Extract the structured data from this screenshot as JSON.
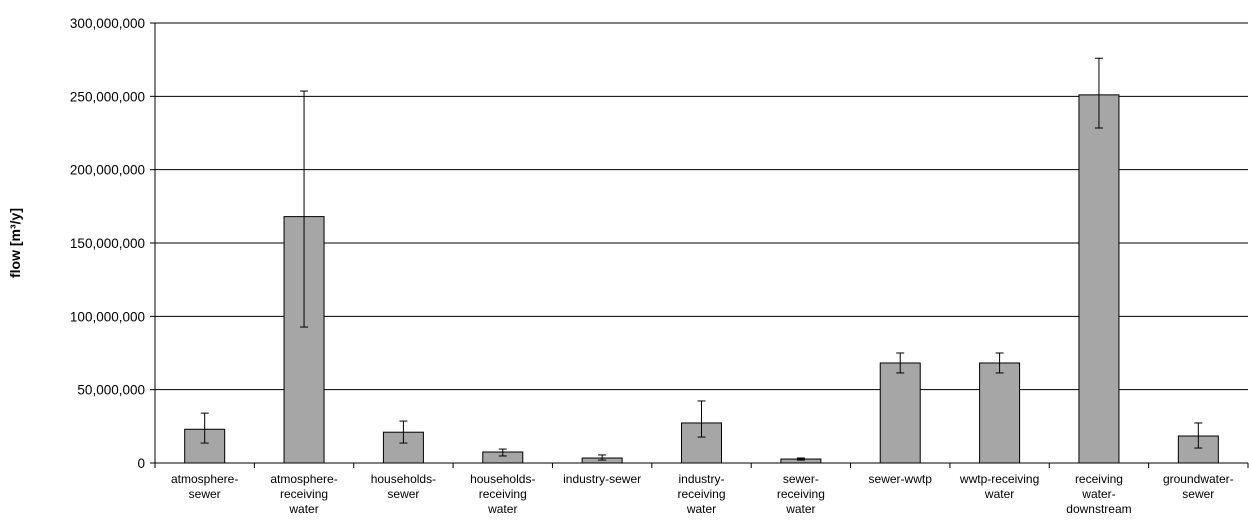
{
  "chart_data": {
    "type": "bar",
    "y_label": "flow [m³/y]",
    "categories": [
      [
        "atmosphere-",
        "sewer"
      ],
      [
        "atmosphere-",
        "receiving",
        "water"
      ],
      [
        "households-",
        "sewer"
      ],
      [
        "households-",
        "receiving",
        "water"
      ],
      [
        "industry-sewer"
      ],
      [
        "industry-",
        "receiving",
        "water"
      ],
      [
        "sewer-",
        "receiving",
        "water"
      ],
      [
        "sewer-wwtp"
      ],
      [
        "wwtp-receiving",
        "water"
      ],
      [
        "receiving",
        "water-",
        "downstream"
      ],
      [
        "groundwater-",
        "sewer"
      ]
    ],
    "values": [
      23000000,
      168000000,
      21000000,
      7500000,
      3400000,
      27300000,
      2700000,
      68200000,
      68200000,
      251000000,
      18400000
    ],
    "errors_high": [
      11000000,
      85600000,
      7600000,
      2000000,
      2100000,
      15000000,
      700000,
      6800000,
      6800000,
      25000000,
      8900000
    ],
    "errors_low": [
      9400000,
      75300000,
      7400000,
      2700000,
      1400000,
      9600000,
      700000,
      6800000,
      6800000,
      22600000,
      8200000
    ],
    "color": "#a6a6a6",
    "ylim": [
      0,
      300000000
    ],
    "yticks": [
      0,
      {
        "value": 50000000,
        "label": "50,000,000"
      },
      {
        "value": 100000000,
        "label": "100,000,000"
      },
      {
        "value": 150000000,
        "label": "150,000,000"
      },
      {
        "value": 200000000,
        "label": "200,000,000"
      },
      {
        "value": 250000000,
        "label": "250,000,000"
      },
      {
        "value": 300000000,
        "label": "300,000,000"
      }
    ],
    "grid": true
  }
}
